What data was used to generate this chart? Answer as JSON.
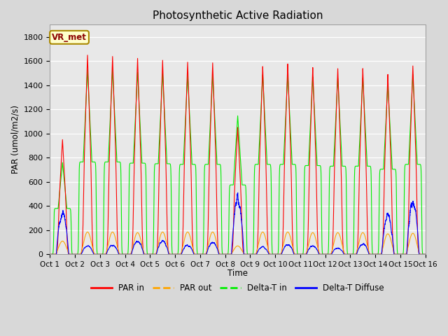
{
  "title": "Photosynthetic Active Radiation",
  "ylabel": "PAR (umol/m2/s)",
  "xlabel": "Time",
  "xlim": [
    0,
    15
  ],
  "ylim": [
    0,
    1900
  ],
  "yticks": [
    0,
    200,
    400,
    600,
    800,
    1000,
    1200,
    1400,
    1600,
    1800
  ],
  "xtick_labels": [
    "Oct 1",
    "Oct 2",
    "Oct 3",
    "Oct 4",
    "Oct 5",
    "Oct 6",
    "Oct 7",
    "Oct 8",
    "Oct 9",
    "Oct 10",
    "Oct 11",
    "Oct 12",
    "Oct 13",
    "Oct 14",
    "Oct 15",
    "Oct 16"
  ],
  "background_color": "#d8d8d8",
  "plot_bg_color": "#e8e8e8",
  "legend_label": "VR_met",
  "colors": {
    "PAR_in": "#ff0000",
    "PAR_out": "#ffa500",
    "Delta_T_in": "#00ee00",
    "Delta_T_Diffuse": "#0000ff"
  },
  "par_in_peaks": [
    950,
    1650,
    1640,
    1625,
    1610,
    1595,
    1590,
    1055,
    1560,
    1580,
    1550,
    1540,
    1540,
    1490,
    1560
  ],
  "par_out_peaks": [
    110,
    185,
    185,
    180,
    185,
    185,
    185,
    70,
    185,
    185,
    180,
    180,
    180,
    170,
    175
  ],
  "delta_t_peaks": [
    760,
    1530,
    1530,
    1510,
    1500,
    1490,
    1490,
    1150,
    1490,
    1490,
    1470,
    1460,
    1460,
    1410,
    1490
  ],
  "delta_diff_peaks": [
    450,
    90,
    100,
    140,
    145,
    100,
    130,
    620,
    80,
    105,
    95,
    70,
    115,
    415,
    575
  ]
}
